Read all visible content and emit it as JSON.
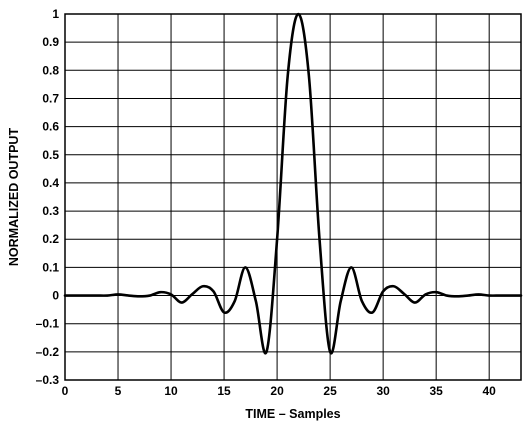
{
  "chart_data": {
    "type": "line",
    "title": "",
    "xlabel": "TIME – Samples",
    "ylabel": "NORMALIZED OUTPUT",
    "xlim": [
      0,
      43
    ],
    "ylim": [
      -0.3,
      1.0
    ],
    "x_ticks": [
      0,
      5,
      10,
      15,
      20,
      25,
      30,
      35,
      40
    ],
    "y_ticks": [
      -0.3,
      -0.2,
      -0.1,
      0,
      0.1,
      0.2,
      0.3,
      0.4,
      0.5,
      0.6,
      0.7,
      0.8,
      0.9,
      1
    ],
    "y_tick_labels": [
      "–0.3",
      "–0.2",
      "–0.1",
      "0",
      "0.1",
      "0.2",
      "0.3",
      "0.4",
      "0.5",
      "0.6",
      "0.7",
      "0.8",
      "0.9",
      "1"
    ],
    "grid": true,
    "line_color": "#000000",
    "series": [
      {
        "x": [
          0,
          1,
          2,
          3,
          4,
          5,
          6,
          7,
          8,
          9,
          10,
          11,
          12,
          13,
          14,
          15,
          16,
          17,
          18,
          19,
          20,
          21,
          22,
          23,
          24,
          25,
          26,
          27,
          28,
          29,
          30,
          31,
          32,
          33,
          34,
          35,
          36,
          37,
          38,
          39,
          40,
          41,
          42,
          43
        ],
        "y": [
          0,
          0,
          0,
          0,
          0,
          0.004,
          0,
          -0.003,
          0,
          0.012,
          0.004,
          -0.025,
          0.005,
          0.033,
          0.015,
          -0.06,
          -0.02,
          0.1,
          -0.02,
          -0.2,
          0.2,
          0.78,
          1.0,
          0.78,
          0.2,
          -0.2,
          -0.02,
          0.1,
          -0.02,
          -0.06,
          0.015,
          0.033,
          0.005,
          -0.025,
          0.004,
          0.012,
          0,
          -0.003,
          0,
          0.004,
          0,
          0,
          0,
          0
        ]
      }
    ]
  }
}
